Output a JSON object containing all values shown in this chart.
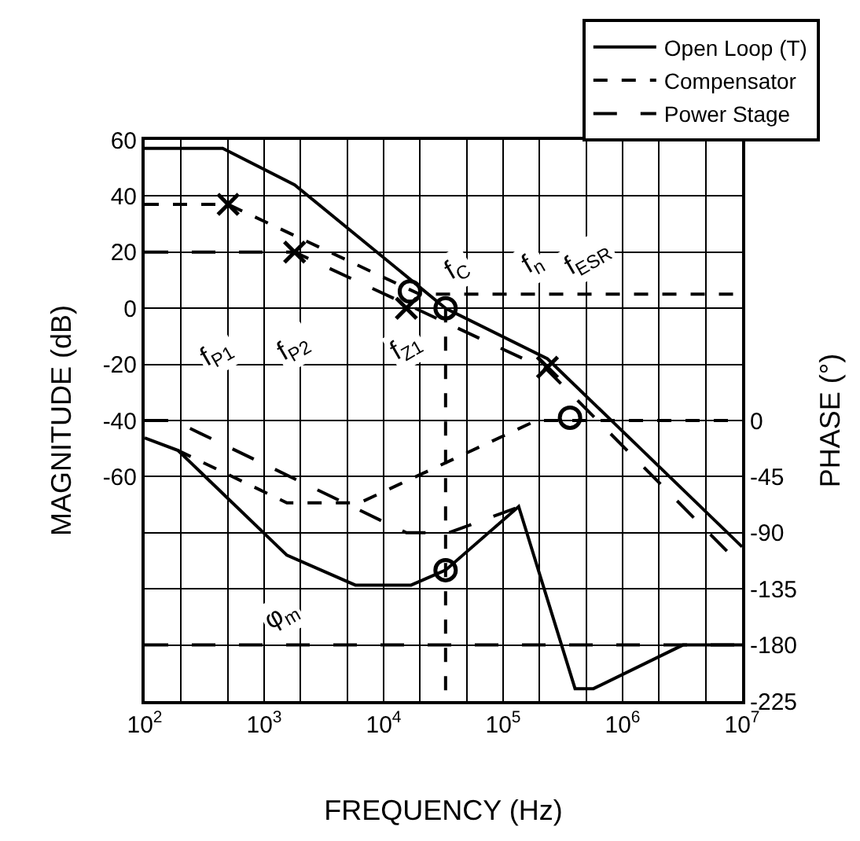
{
  "chart_data": {
    "type": "line",
    "xlabel": "FREQUENCY (Hz)",
    "ylabel": "MAGNITUDE (dB)",
    "y2label": "PHASE (°)",
    "log": "x",
    "grid": true,
    "legend": "top right",
    "xlim": [
      100,
      10000000
    ],
    "xticks": [
      {
        "value": 100,
        "label": "10$^{2}$"
      },
      {
        "value": 1000,
        "label": "10$^{3}$"
      },
      {
        "value": 10000,
        "label": "10$^{4}$"
      },
      {
        "value": 100000,
        "label": "10$^{5}$"
      },
      {
        "value": 1000000,
        "label": "10$^{6}$"
      },
      {
        "value": 10000000,
        "label": "10$^{7}$"
      }
    ],
    "ylim": [
      -140,
      60
    ],
    "yticks": [
      60,
      40,
      20,
      0,
      -20,
      -40,
      -60
    ],
    "y2lim": [
      -225,
      225
    ],
    "y2ticks": [
      0,
      -45,
      -90,
      -135,
      -180,
      -225
    ],
    "series": [
      {
        "name": "Open Loop (T)",
        "line_style": "solid",
        "color": "#000000",
        "x": [
          100,
          450,
          1800,
          33000,
          235000,
          10000000
        ],
        "values": [
          57,
          57,
          44,
          0,
          -18,
          -85
        ]
      },
      {
        "name": "Compensator",
        "line_style": "dotted",
        "color": "#000000",
        "x": [
          100,
          500,
          20000,
          10000000
        ],
        "values": [
          37,
          37,
          5,
          5
        ]
      },
      {
        "name": "Power Stage",
        "line_style": "dashed",
        "color": "#000000",
        "x": [
          100,
          1800,
          235000,
          10000000
        ],
        "values": [
          20,
          20,
          -22,
          -92
        ]
      },
      {
        "line_style": "solid",
        "color": "#000000",
        "axis": "y2",
        "x": [
          100,
          190,
          1550,
          5800,
          17000,
          33000,
          135000,
          400000,
          570000,
          3200000,
          10000000
        ],
        "values": [
          -14,
          -24,
          -108,
          -132,
          -132,
          -120,
          -69,
          -215,
          -215,
          -180,
          -180
        ]
      },
      {
        "line_style": "dotted",
        "color": "#000000",
        "axis": "y2",
        "x": [
          190,
          1550,
          6300,
          190000,
          10000000
        ],
        "values": [
          -24,
          -66,
          -66,
          0,
          0
        ]
      },
      {
        "line_style": "dashed",
        "color": "#000000",
        "axis": "y2",
        "x": [
          100,
          175,
          15500,
          35000,
          130000
        ],
        "values": [
          0,
          0,
          -90,
          -90,
          -70
        ]
      },
      {
        "line_style": "dotted",
        "color": "#000000",
        "x": [
          33000,
          33000
        ],
        "values": [
          0,
          -140
        ]
      },
      {
        "type": "scatter",
        "marker": "cross",
        "color": "#000000",
        "x": [
          500,
          1800,
          15500,
          235000
        ],
        "values": [
          37,
          20,
          0,
          -21
        ]
      },
      {
        "type": "scatter",
        "marker": "circle",
        "color": "#000000",
        "x": [
          16600,
          33000,
          363000
        ],
        "values": [
          6,
          0,
          -39
        ]
      },
      {
        "type": "scatter",
        "marker": "circle",
        "color": "#000000",
        "axis": "y2",
        "x": [
          33000
        ],
        "values": [
          -120
        ]
      }
    ],
    "ref_lines": [
      {
        "axis": "y2",
        "value": -180,
        "line_style": "dashed",
        "color": "#000000"
      }
    ],
    "annotations": [
      {
        "text": "f$_{P1}$",
        "x": 400,
        "y": -16
      },
      {
        "text": "f$_{P2}$",
        "x": 1800,
        "y": -14
      },
      {
        "text": "f$_{Z1}$",
        "x": 15500,
        "y": -14
      },
      {
        "text": "f$_{C}$",
        "x": 42000,
        "y": 14
      },
      {
        "text": "f$_{n}$",
        "x": 175000,
        "y": 16
      },
      {
        "text": "f$_{ESR}$",
        "x": 520000,
        "y": 18
      },
      {
        "text": "φ$_{m}$",
        "x": 1400,
        "y": -110
      }
    ]
  }
}
